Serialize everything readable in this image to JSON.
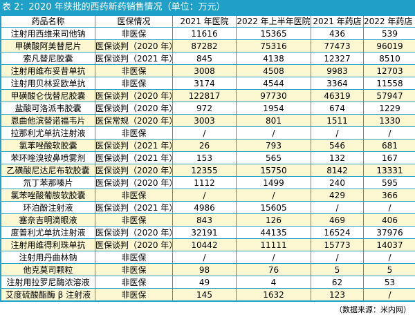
{
  "title": "表 2：2020 年获批的西药新药销售情况（单位：万元）",
  "columns": [
    "药品名称",
    "医保情况",
    "2021 年医院",
    "2022 年上半年医院",
    "2021 年药店",
    "2022 年药店 E"
  ],
  "rows": [
    [
      "注射用西维来司他钠",
      "非医保",
      "11616",
      "15365",
      "436",
      "539"
    ],
    [
      "甲磺酸阿美替尼片",
      "医保谈判（2020 年）",
      "87282",
      "75316",
      "77473",
      "96019"
    ],
    [
      "索凡替尼胶囊",
      "医保谈判（2021 年）",
      "845",
      "4138",
      "12327",
      "8510"
    ],
    [
      "注射用维布妥昔单抗",
      "非医保",
      "3008",
      "4508",
      "9983",
      "12703"
    ],
    [
      "注射用贝林妥欧单抗",
      "非医保",
      "3174",
      "4544",
      "3364",
      "11558"
    ],
    [
      "甲磺酸仑伐替尼胶囊",
      "医保谈判（2020 年）",
      "122817",
      "97730",
      "46319",
      "57947"
    ],
    [
      "盐酸可洛派韦胶囊",
      "医保谈判（2020 年）",
      "972",
      "1954",
      "674",
      "1229"
    ],
    [
      "恩曲他滨替诺福韦片",
      "医保常规（2020 年）",
      "3003",
      "801",
      "1511",
      "1330"
    ],
    [
      "拉那利尤单抗注射液",
      "非医保",
      "/",
      "/",
      "/",
      "/"
    ],
    [
      "氯苯唑酸软胶囊",
      "医保谈判（2021 年）",
      "26",
      "793",
      "546",
      "681"
    ],
    [
      "苯环喹溴铵鼻喷雾剂",
      "医保谈判（2021 年）",
      "153",
      "565",
      "132",
      "167"
    ],
    [
      "乙磺酸尼达尼布软胶囊",
      "医保谈判（2020 年）",
      "12355",
      "15750",
      "8142",
      "13331"
    ],
    [
      "氘丁苯那嗪片",
      "医保谈判（2020 年）",
      "1112",
      "1499",
      "240",
      "595"
    ],
    [
      "氯苯唑酸葡胺软胶囊",
      "非医保",
      "/",
      "/",
      "429",
      "366"
    ],
    [
      "环泊酚注射液",
      "医保谈判（2021 年）",
      "4986",
      "15605",
      "/",
      "/"
    ],
    [
      "塞奈吉明滴眼液",
      "非医保",
      "843",
      "126",
      "469",
      "406"
    ],
    [
      "度普利尤单抗注射液",
      "医保谈判（2020 年）",
      "32191",
      "44135",
      "16524",
      "37976"
    ],
    [
      "注射用维得利珠单抗",
      "医保谈判（2020 年）",
      "10442",
      "11111",
      "15773",
      "14037"
    ],
    [
      "注射用丹曲林钠",
      "非医保",
      "/",
      "/",
      "/",
      "/"
    ],
    [
      "他克莫司颗粒",
      "非医保",
      "98",
      "76",
      "5",
      "5"
    ],
    [
      "注射用拉罗尼酶浓溶液",
      "非医保",
      "49",
      "4",
      "62",
      "53"
    ],
    [
      "艾度硫酸酯酶 β 注射液",
      "非医保",
      "145",
      "1632",
      "123",
      "/"
    ]
  ],
  "source": "（数据来源：米内网）"
}
